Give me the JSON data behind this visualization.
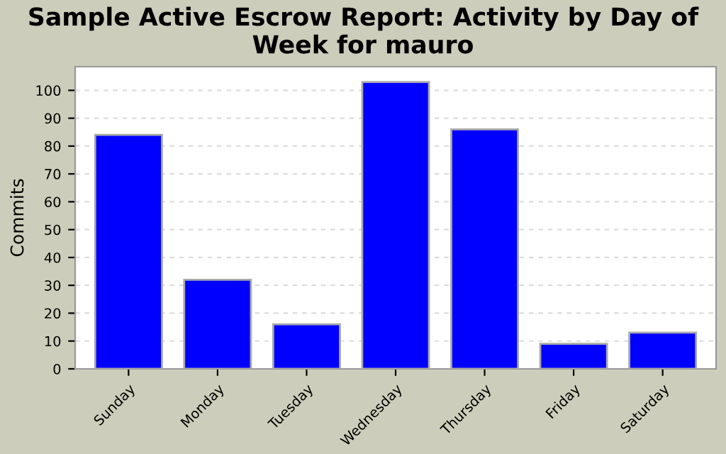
{
  "chart_data": {
    "type": "bar",
    "title": "Sample Active Escrow Report: Activity by Day of Week for mauro",
    "ylabel": "Commits",
    "categories": [
      "Sunday",
      "Monday",
      "Tuesday",
      "Wednesday",
      "Thursday",
      "Friday",
      "Saturday"
    ],
    "values": [
      84,
      32,
      16,
      103,
      86,
      9,
      13
    ],
    "color": "#0000ff",
    "ylim": [
      0,
      108.5
    ],
    "yticks": [
      0,
      10,
      20,
      30,
      40,
      50,
      60,
      70,
      80,
      90,
      100
    ],
    "grid": "y",
    "legend": false
  }
}
